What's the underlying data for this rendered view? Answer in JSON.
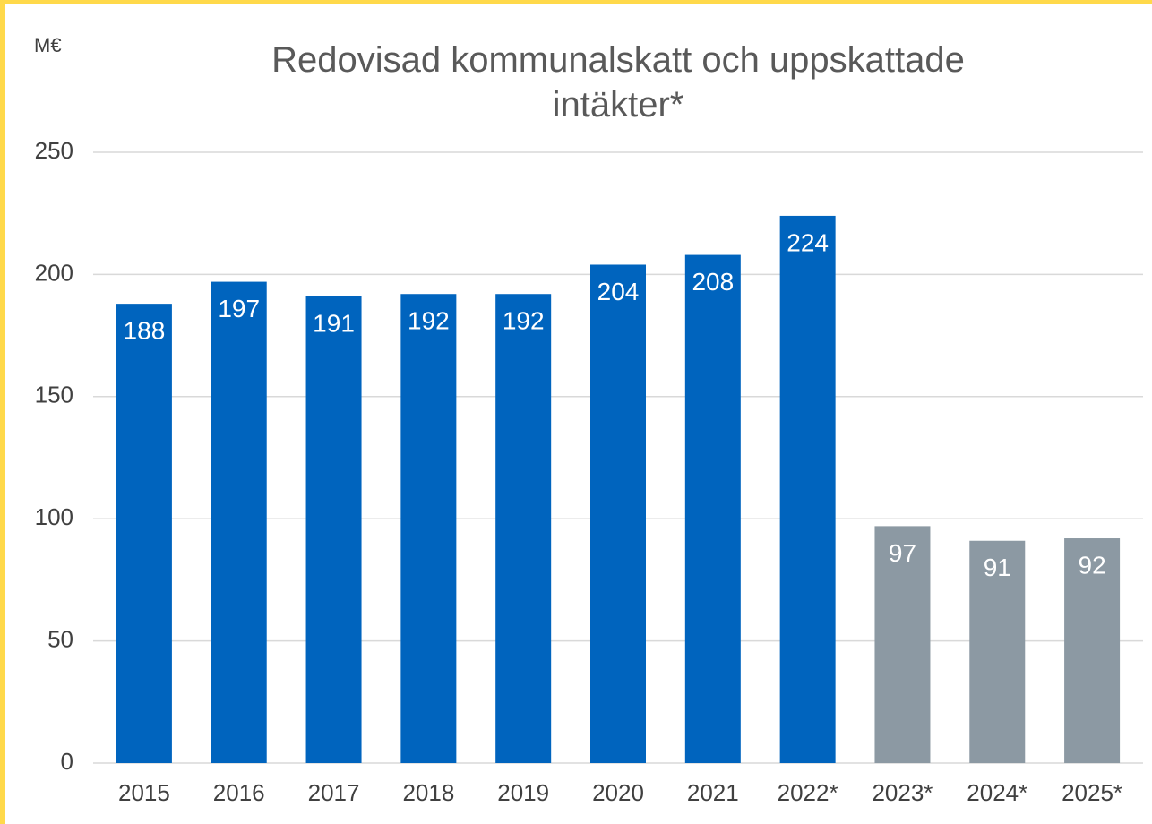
{
  "chart_data": {
    "type": "bar",
    "title": "Redovisad kommunalskatt och uppskattade intäkter*",
    "y_unit": "M€",
    "categories": [
      "2015",
      "2016",
      "2017",
      "2018",
      "2019",
      "2020",
      "2021",
      "2022*",
      "2023*",
      "2024*",
      "2025*"
    ],
    "values": [
      188,
      197,
      191,
      192,
      192,
      204,
      208,
      224,
      97,
      91,
      92
    ],
    "colors": [
      "#0064be",
      "#0064be",
      "#0064be",
      "#0064be",
      "#0064be",
      "#0064be",
      "#0064be",
      "#0064be",
      "#8c99a3",
      "#8c99a3",
      "#8c99a3"
    ],
    "ylim": [
      0,
      250
    ],
    "yticks": [
      0,
      50,
      100,
      150,
      200,
      250
    ],
    "grid": true
  }
}
